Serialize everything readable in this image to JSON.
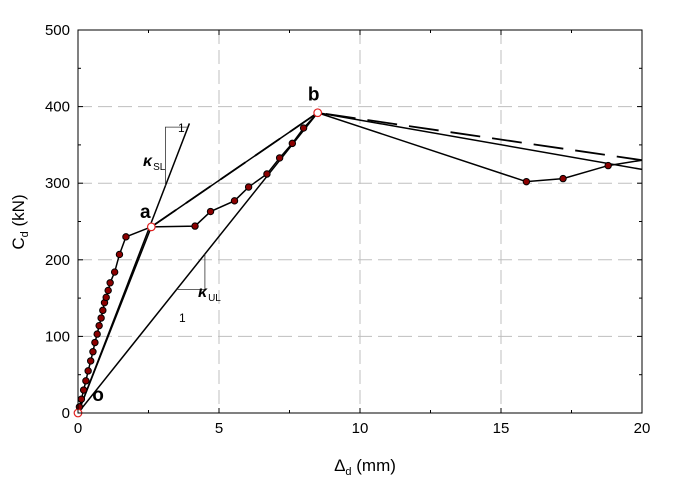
{
  "chart_data": {
    "type": "scatter",
    "xlabel": "Δ",
    "xlabel_sub": "d",
    "xlabel_unit": " (mm)",
    "ylabel": "C",
    "ylabel_sub": "d",
    "ylabel_unit": " (kN)",
    "xlim": [
      0,
      20
    ],
    "ylim": [
      0,
      500
    ],
    "xticks": [
      0,
      5,
      10,
      15,
      20
    ],
    "yticks": [
      0,
      100,
      200,
      300,
      400,
      500
    ],
    "grid": true,
    "colors": {
      "marker_fill": "#8b0000",
      "marker_edge": "#000000",
      "special_edge": "#e02020",
      "line": "#000000",
      "grid": "#bfbfbf"
    },
    "test_points": {
      "x": [
        0.05,
        0.12,
        0.2,
        0.28,
        0.36,
        0.45,
        0.53,
        0.6,
        0.68,
        0.75,
        0.82,
        0.88,
        0.94,
        1.0,
        1.07,
        1.14,
        1.3,
        1.47,
        1.7,
        4.15,
        4.7,
        5.55,
        6.05,
        6.7,
        7.15,
        7.6,
        8.0,
        15.9,
        17.2,
        18.8
      ],
      "y": [
        8,
        18,
        30,
        42,
        55,
        68,
        80,
        92,
        103,
        114,
        124,
        134,
        144,
        151,
        160,
        170,
        184,
        207,
        230,
        244,
        263,
        277,
        295,
        312,
        333,
        352,
        372,
        302,
        306,
        323
      ]
    },
    "key_points": [
      {
        "label": "o",
        "x": 0,
        "y": 0
      },
      {
        "label": "a",
        "x": 2.6,
        "y": 243
      },
      {
        "label": "b",
        "x": 8.5,
        "y": 392
      }
    ],
    "polyline_solid": {
      "x": [
        0,
        2.6,
        8.5,
        20
      ],
      "y": [
        0,
        243,
        392,
        318
      ]
    },
    "polyline_dashed": {
      "x": [
        2.6,
        8.5,
        20
      ],
      "y": [
        243,
        392,
        330
      ]
    },
    "test_curve": {
      "x": [
        0,
        0.05,
        0.12,
        0.2,
        0.28,
        0.36,
        0.45,
        0.53,
        0.6,
        0.68,
        0.75,
        0.82,
        0.88,
        0.94,
        1.0,
        1.07,
        1.14,
        1.3,
        1.47,
        1.7,
        2.6,
        4.15,
        4.7,
        5.55,
        6.05,
        6.7,
        7.15,
        7.6,
        8.0,
        8.5,
        15.9,
        17.2,
        18.8,
        20.0
      ],
      "y": [
        0,
        8,
        18,
        30,
        42,
        55,
        68,
        80,
        92,
        103,
        114,
        124,
        134,
        144,
        151,
        160,
        170,
        184,
        207,
        230,
        243,
        244,
        263,
        277,
        295,
        312,
        333,
        352,
        372,
        392,
        302,
        306,
        323,
        330
      ]
    },
    "stiffness_lines": [
      {
        "name": "SL",
        "x": [
          0,
          3.95
        ],
        "y": [
          0,
          378
        ]
      },
      {
        "name": "UL",
        "x": [
          0,
          8.5
        ],
        "y": [
          0,
          392
        ]
      }
    ],
    "annotations": {
      "kappa_symbol": "κ",
      "kappa_sl_sub": "SL",
      "kappa_ul_sub": "UL",
      "slope_one": "1"
    }
  }
}
